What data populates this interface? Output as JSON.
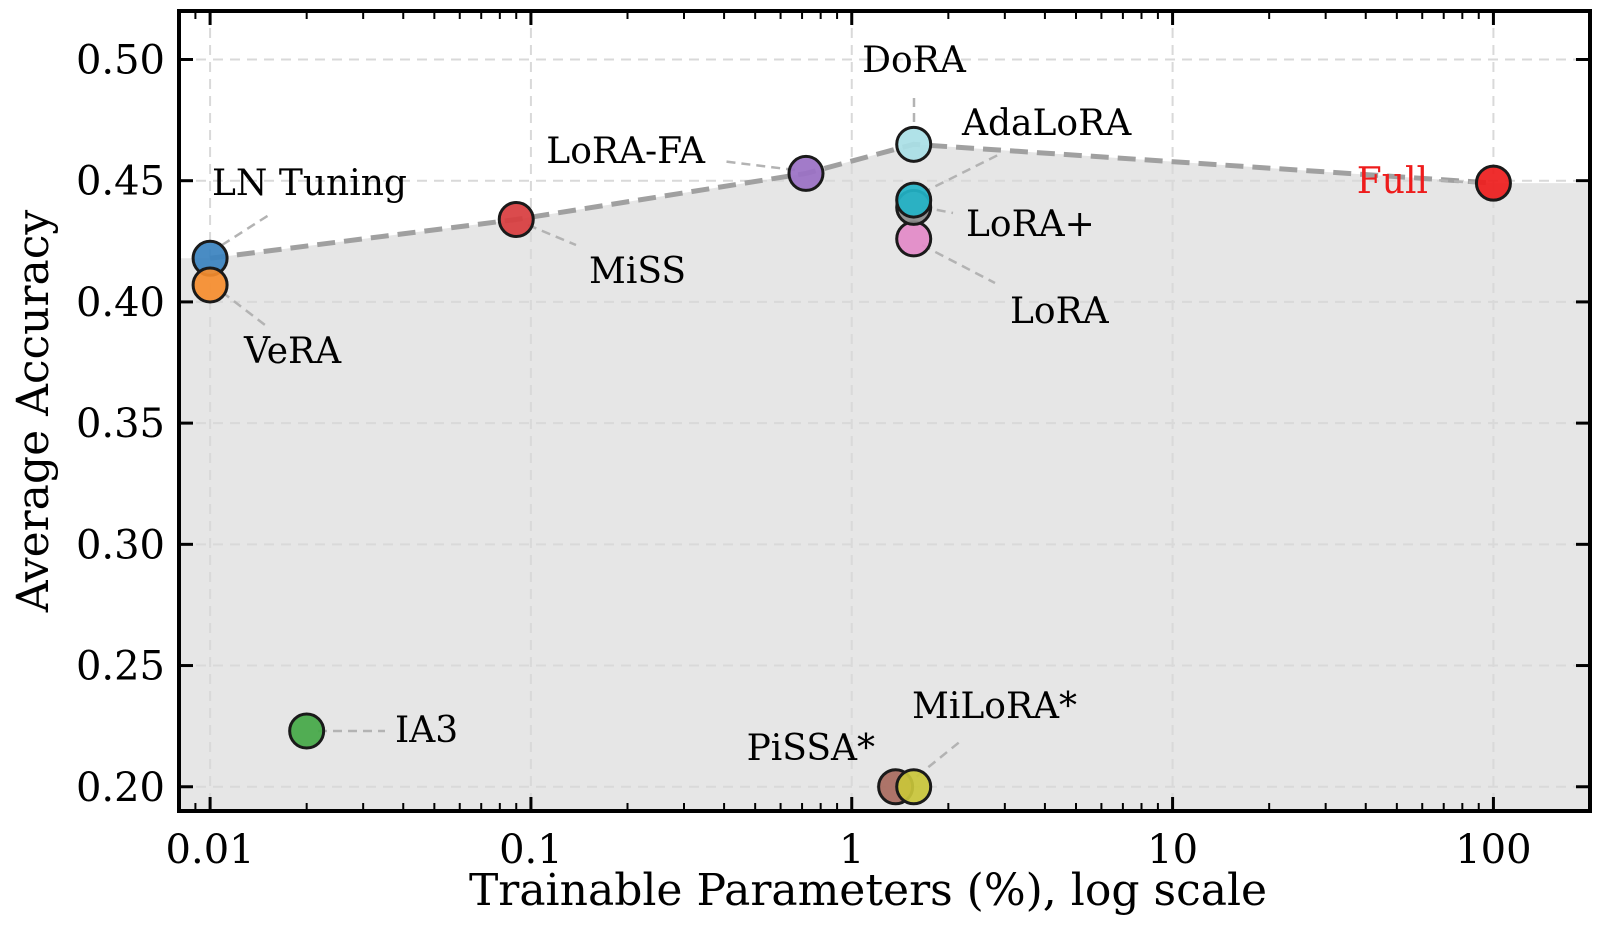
{
  "chart_data": {
    "type": "scatter",
    "title": "",
    "xlabel": "Trainable Parameters (%), log scale",
    "ylabel": "Average Accuracy",
    "xscale": "log",
    "xlim": [
      0.008,
      200
    ],
    "ylim": [
      0.19,
      0.52
    ],
    "xticks": [
      0.01,
      0.1,
      1,
      10,
      100
    ],
    "xtick_labels": [
      "0.01",
      "0.1",
      "1",
      "10",
      "100"
    ],
    "yticks": [
      0.2,
      0.25,
      0.3,
      0.35,
      0.4,
      0.45,
      0.5
    ],
    "ytick_labels": [
      "0.20",
      "0.25",
      "0.30",
      "0.35",
      "0.40",
      "0.45",
      "0.50"
    ],
    "grid": true,
    "points": [
      {
        "name": "LN Tuning",
        "x": 0.01,
        "y": 0.418,
        "color": "#3a82bf",
        "label_color": "#000000"
      },
      {
        "name": "VeRA",
        "x": 0.01,
        "y": 0.407,
        "color": "#f68d2e",
        "label_color": "#000000"
      },
      {
        "name": "MiSS",
        "x": 0.09,
        "y": 0.434,
        "color": "#d83c3e",
        "label_color": "#000000"
      },
      {
        "name": "LoRA-FA",
        "x": 0.72,
        "y": 0.453,
        "color": "#9a70c4",
        "label_color": "#000000"
      },
      {
        "name": "IA3",
        "x": 0.02,
        "y": 0.223,
        "color": "#44a846",
        "label_color": "#000000"
      },
      {
        "name": "PiSSA*",
        "x": 1.37,
        "y": 0.2,
        "color": "#a86a5e",
        "label_color": "#000000"
      },
      {
        "name": "MiLoRA*",
        "x": 1.56,
        "y": 0.2,
        "color": "#c9c53a",
        "label_color": "#000000"
      },
      {
        "name": "LoRA",
        "x": 1.56,
        "y": 0.426,
        "color": "#e38ac8",
        "label_color": "#000000"
      },
      {
        "name": "LoRA+",
        "x": 1.56,
        "y": 0.439,
        "color": "#8c8c8c",
        "label_color": "#000000"
      },
      {
        "name": "AdaLoRA",
        "x": 1.56,
        "y": 0.442,
        "color": "#22b3c7",
        "label_color": "#000000"
      },
      {
        "name": "DoRA",
        "x": 1.56,
        "y": 0.465,
        "color": "#a9dfe6",
        "label_color": "#000000"
      },
      {
        "name": "Full",
        "x": 100,
        "y": 0.449,
        "color": "#ee1c1c",
        "label_color": "#ee1c1c"
      }
    ],
    "pareto_frontier": {
      "style": "dashed",
      "color": "#a0a0a0",
      "fill_below": true,
      "fill_color": "#e6e6e6",
      "points": [
        {
          "x": 0.01,
          "y": 0.418
        },
        {
          "x": 0.09,
          "y": 0.434
        },
        {
          "x": 0.72,
          "y": 0.453
        },
        {
          "x": 1.56,
          "y": 0.465
        },
        {
          "x": 100,
          "y": 0.449
        }
      ]
    }
  }
}
